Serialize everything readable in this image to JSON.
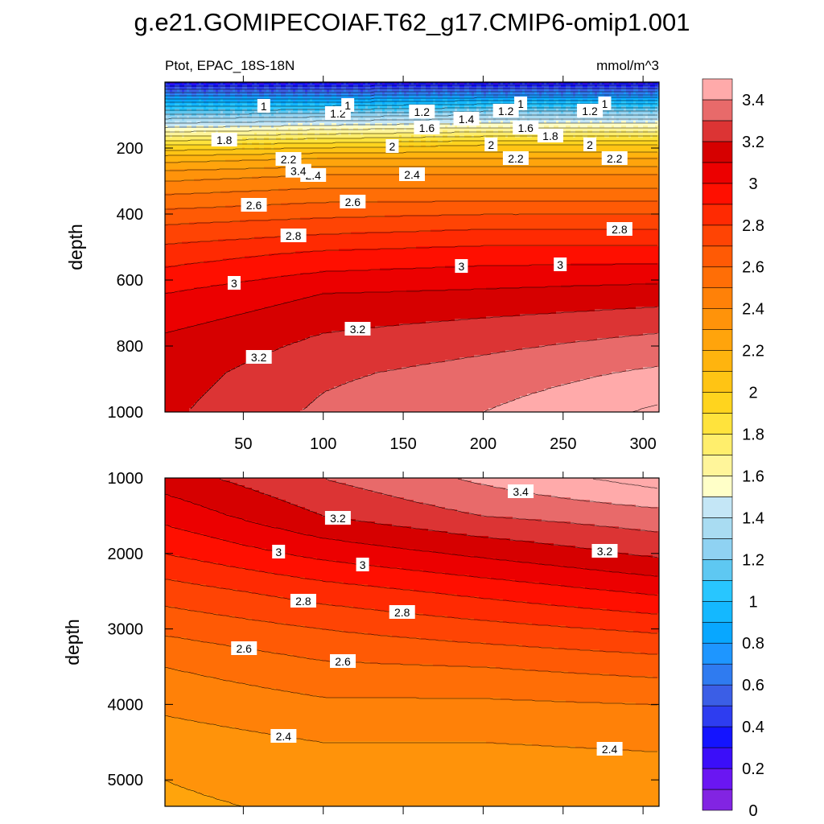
{
  "chart_data": {
    "type": "contour",
    "title": "g.e21.GOMIPECOIAF.T62_g17.CMIP6-omip1.001",
    "left_label": "Ptot, EPAC_18S-18N",
    "units_label": "mmol/m^3",
    "xlabel": "",
    "ylabel": "depth",
    "x_range": [
      1,
      310
    ],
    "x_ticks": [
      "50",
      "100",
      "150",
      "200",
      "250",
      "300"
    ],
    "upper_panel": {
      "ylim": [
        0,
        1000
      ],
      "y_ticks": [
        "200",
        "400",
        "600",
        "800",
        "1000"
      ],
      "contour_labels": [
        "1.2",
        "1",
        "1.2",
        "1",
        "1.2",
        "1",
        "1.2",
        "1",
        "1.6",
        "1.6",
        "1.4",
        "1.8",
        "1.8",
        "2",
        "2",
        "2",
        "2.2",
        "2.2",
        "2.2",
        "2.4",
        "2.4",
        "2.6",
        "2.6",
        "2.8",
        "2.8",
        "3",
        "3",
        "3",
        "3.2",
        "3.2",
        "3.4"
      ],
      "profile_depths": [
        0,
        60,
        110,
        150,
        190,
        230,
        280,
        340,
        420,
        520,
        640,
        760,
        880,
        1000
      ],
      "profile_values": {
        "x_1": [
          0.3,
          0.9,
          1.3,
          1.6,
          1.9,
          2.15,
          2.35,
          2.5,
          2.68,
          2.85,
          3.0,
          3.1,
          3.15,
          3.18
        ],
        "x_100": [
          0.3,
          0.9,
          1.35,
          1.65,
          1.95,
          2.2,
          2.4,
          2.55,
          2.72,
          2.92,
          3.1,
          3.2,
          3.28,
          3.32
        ],
        "x_200": [
          0.3,
          0.95,
          1.4,
          1.7,
          2.0,
          2.2,
          2.4,
          2.55,
          2.75,
          2.95,
          3.12,
          3.25,
          3.34,
          3.4
        ],
        "x_310": [
          0.3,
          0.95,
          1.4,
          1.7,
          2.0,
          2.2,
          2.4,
          2.55,
          2.75,
          2.95,
          3.15,
          3.3,
          3.42,
          3.52
        ]
      }
    },
    "lower_panel": {
      "ylim": [
        1000,
        5350
      ],
      "y_ticks": [
        "1000",
        "2000",
        "3000",
        "4000",
        "5000"
      ],
      "contour_labels": [
        "3.2",
        "3.4",
        "3",
        "3.2",
        "3",
        "2.8",
        "2.8",
        "2.6",
        "2.6",
        "2.4",
        "2.4"
      ],
      "profile_depths": [
        1000,
        1500,
        2000,
        2500,
        3000,
        3500,
        4000,
        4500,
        5000,
        5350
      ],
      "profile_values": {
        "x_1": [
          3.15,
          3.03,
          2.9,
          2.75,
          2.62,
          2.5,
          2.42,
          2.35,
          2.3,
          2.28
        ],
        "x_100": [
          3.3,
          3.2,
          3.03,
          2.85,
          2.7,
          2.58,
          2.48,
          2.4,
          2.35,
          2.32
        ],
        "x_200": [
          3.42,
          3.3,
          3.12,
          2.93,
          2.76,
          2.6,
          2.48,
          2.4,
          2.36,
          2.34
        ],
        "x_310": [
          3.55,
          3.36,
          3.22,
          3.02,
          2.82,
          2.64,
          2.5,
          2.41,
          2.37,
          2.35
        ]
      }
    },
    "colorbar": {
      "labels": [
        "3.4",
        "3.2",
        "3",
        "2.8",
        "2.6",
        "2.4",
        "2.2",
        "2",
        "1.8",
        "1.6",
        "1.4",
        "1.2",
        "1",
        "0.8",
        "0.6",
        "0.4",
        "0.2",
        "0"
      ],
      "levels": [
        0,
        0.1,
        0.2,
        0.3,
        0.4,
        0.5,
        0.6,
        0.7,
        0.8,
        0.9,
        1.0,
        1.1,
        1.2,
        1.3,
        1.4,
        1.5,
        1.6,
        1.7,
        1.8,
        1.9,
        2.0,
        2.1,
        2.2,
        2.3,
        2.4,
        2.5,
        2.6,
        2.7,
        2.8,
        2.9,
        3.0,
        3.1,
        3.2,
        3.3,
        3.4,
        3.5
      ],
      "colors": [
        "#8224e2",
        "#6a16f2",
        "#3b0ef9",
        "#1414ff",
        "#2e3df0",
        "#3b5ee6",
        "#2f7bf0",
        "#1e96ff",
        "#08a7ff",
        "#14b8ff",
        "#28c6ff",
        "#5ec8f2",
        "#8fd2f2",
        "#a9dcf2",
        "#c4e6f6",
        "#ffffc8",
        "#fff59a",
        "#ffee6c",
        "#ffe33c",
        "#ffd41e",
        "#ffc414",
        "#ffb40e",
        "#ffa40c",
        "#ff930a",
        "#ff8108",
        "#ff6e06",
        "#ff5a05",
        "#ff4404",
        "#ff2a02",
        "#ff0f00",
        "#ec0000",
        "#d60000",
        "#dc3434",
        "#e86a6a",
        "#ffaaaa"
      ]
    }
  }
}
